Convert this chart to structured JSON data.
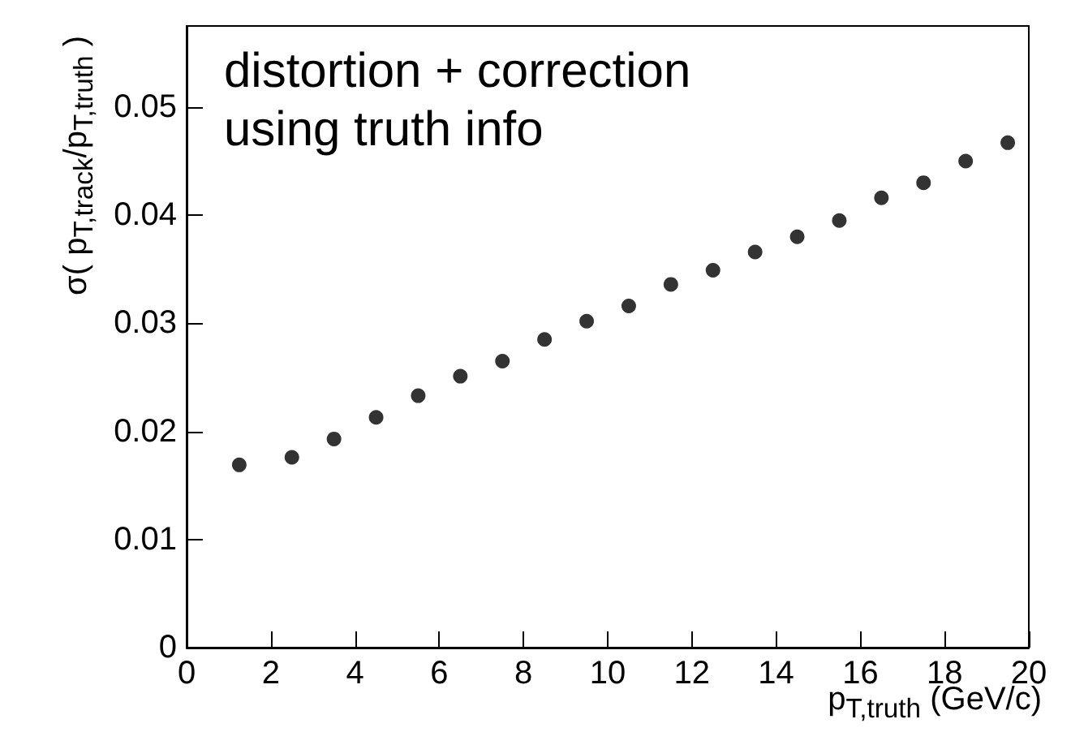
{
  "chart_data": {
    "type": "scatter",
    "xlabel": "p$_{T,truth}$ (GeV/c)",
    "ylabel": "σ( p$_{T,track}$/p$_{T,truth}$ )",
    "annotations": [
      "distortion + correction",
      "using truth info"
    ],
    "x": [
      1.25,
      2.5,
      3.5,
      4.5,
      5.5,
      6.5,
      7.5,
      8.5,
      9.5,
      10.5,
      11.5,
      12.5,
      13.5,
      14.5,
      15.5,
      16.5,
      17.5,
      18.5,
      19.5
    ],
    "values": [
      0.0169,
      0.0176,
      0.0193,
      0.0213,
      0.0233,
      0.0251,
      0.0265,
      0.0285,
      0.0302,
      0.0316,
      0.0336,
      0.0349,
      0.0366,
      0.038,
      0.0395,
      0.0416,
      0.043,
      0.045,
      0.0467
    ],
    "color": "#000000",
    "marker": "circle",
    "xlim": [
      0,
      20
    ],
    "xticks": [
      0,
      2,
      4,
      6,
      8,
      10,
      12,
      14,
      16,
      18,
      20
    ],
    "ylim": [
      0,
      0.0575
    ],
    "yticks": [
      0,
      0.01,
      0.02,
      0.03,
      0.04,
      0.05
    ],
    "grid": false
  }
}
